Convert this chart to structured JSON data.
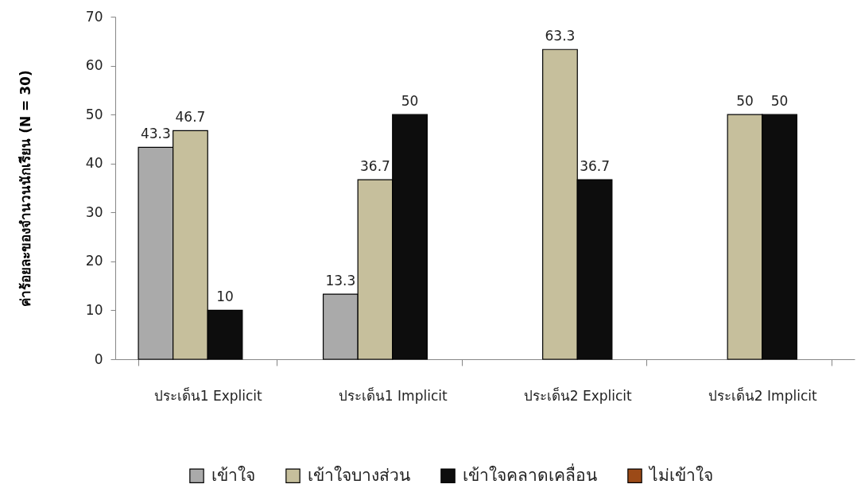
{
  "chart_data": {
    "type": "bar",
    "ylabel": "ค่าร้อยละของจำนวนนักเรียน (N = 30)",
    "categories": [
      "ประเด็น1 Explicit",
      "ประเด็น1 Implicit",
      "ประเด็น2 Explicit",
      "ประเด็น2 Implicit"
    ],
    "series": [
      {
        "name": "เข้าใจ",
        "color": "#aaaaaa",
        "values": [
          43.3,
          13.3,
          null,
          null
        ]
      },
      {
        "name": "เข้าใจบางส่วน",
        "color": "#c6bf9c",
        "values": [
          46.7,
          36.7,
          63.3,
          50
        ]
      },
      {
        "name": "เข้าใจคลาดเคลื่อน",
        "color": "#0d0d0d",
        "values": [
          10,
          50,
          36.7,
          50
        ]
      },
      {
        "name": "ไม่เข้าใจ",
        "color": "#9c4a17",
        "values": [
          null,
          null,
          null,
          null
        ]
      }
    ],
    "ylim": [
      0,
      70
    ],
    "yticks": [
      0,
      10,
      20,
      30,
      40,
      50,
      60,
      70
    ],
    "grid": false,
    "legend": "bottom",
    "data_labels": true
  }
}
